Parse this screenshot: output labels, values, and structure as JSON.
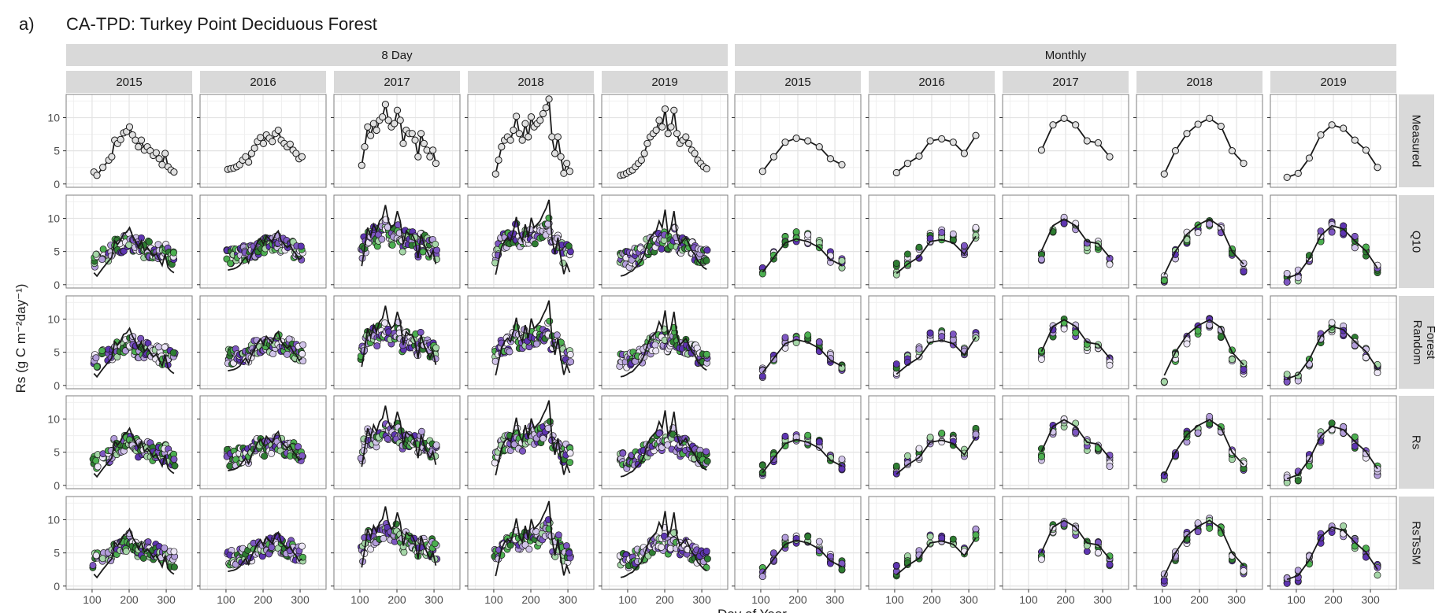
{
  "figure": {
    "panel_label": "a)",
    "title": "CA-TPD: Turkey Point Deciduous Forest"
  },
  "colors": {
    "strip": "#d9d9d9",
    "panel_border": "#7f7f7f",
    "grid": "#e3e3e3",
    "line": "#1a1a1a",
    "point_outline": "#1a1a1a",
    "palette": [
      "#7e57c2",
      "#5e35b1",
      "#b39ddb",
      "#d1c4e9",
      "#a5d6a7",
      "#4caf50",
      "#2e7d32",
      "#ede7f6",
      "#ffffff"
    ]
  },
  "chart_data": {
    "type": "scatter",
    "subtype": "faceted line + scatter (small multiples)",
    "title": "CA-TPD: Turkey Point Deciduous Forest",
    "xlabel": "Day of Year",
    "ylabel": "Rs (g C m⁻²day⁻¹)",
    "x_ticks": [
      100,
      200,
      300
    ],
    "y_ticks": [
      0,
      5,
      10
    ],
    "xlim": [
      30,
      370
    ],
    "ylim": [
      -0.5,
      13.5
    ],
    "grid": true,
    "legend": "none",
    "column_groups": [
      {
        "label": "8 Day",
        "years": [
          "2015",
          "2016",
          "2017",
          "2018",
          "2019"
        ]
      },
      {
        "label": "Monthly",
        "years": [
          "2015",
          "2016",
          "2017",
          "2018",
          "2019"
        ]
      }
    ],
    "rows": [
      "Measured",
      "Q10",
      "Random Forest",
      "Rs",
      "RsTsSM"
    ],
    "measured": {
      "8day": {
        "2015": {
          "x": [
            105,
            113,
            129,
            145,
            153,
            161,
            169,
            177,
            185,
            193,
            201,
            209,
            217,
            225,
            233,
            241,
            249,
            257,
            265,
            273,
            281,
            289,
            297,
            305,
            313,
            321
          ],
          "y": [
            1.8,
            1.3,
            2.5,
            3.6,
            4.1,
            6.6,
            6.1,
            6.7,
            7.7,
            7.9,
            8.6,
            7.4,
            6.6,
            5.6,
            6.6,
            5.1,
            5.6,
            5.0,
            4.3,
            4.7,
            3.8,
            2.9,
            4.6,
            2.6,
            2.1,
            1.8
          ]
        },
        "2016": {
          "x": [
            105,
            113,
            121,
            129,
            137,
            145,
            153,
            161,
            169,
            177,
            185,
            193,
            201,
            209,
            217,
            225,
            233,
            241,
            249,
            257,
            265,
            273,
            281,
            289,
            297,
            305
          ],
          "y": [
            2.2,
            2.3,
            2.4,
            2.6,
            2.9,
            3.6,
            4.1,
            3.3,
            4.6,
            5.4,
            6.4,
            7.0,
            6.1,
            7.4,
            6.9,
            6.4,
            7.6,
            8.1,
            6.6,
            6.1,
            5.6,
            6.0,
            5.1,
            4.6,
            3.8,
            4.1
          ]
        },
        "2017": {
          "x": [
            105,
            113,
            121,
            129,
            137,
            145,
            153,
            161,
            169,
            177,
            185,
            193,
            201,
            209,
            217,
            225,
            233,
            241,
            249,
            257,
            265,
            273,
            281,
            289,
            297,
            305
          ],
          "y": [
            2.8,
            5.6,
            8.6,
            7.3,
            9.1,
            8.1,
            9.6,
            10.1,
            12.0,
            9.6,
            8.6,
            9.1,
            11.1,
            9.6,
            6.1,
            8.1,
            7.6,
            7.6,
            6.6,
            4.1,
            7.6,
            6.1,
            5.1,
            4.1,
            5.1,
            3.1
          ]
        },
        "2018": {
          "x": [
            105,
            113,
            121,
            129,
            137,
            145,
            153,
            161,
            169,
            177,
            185,
            193,
            201,
            209,
            217,
            225,
            233,
            241,
            249,
            257,
            265,
            273,
            281,
            289,
            297,
            305
          ],
          "y": [
            1.5,
            3.6,
            5.6,
            6.6,
            7.1,
            6.6,
            8.1,
            10.2,
            7.6,
            6.6,
            9.1,
            7.1,
            10.1,
            8.6,
            9.1,
            9.6,
            10.6,
            11.5,
            12.8,
            7.1,
            4.6,
            7.1,
            4.1,
            1.6,
            3.1,
            1.9
          ]
        },
        "2019": {
          "x": [
            81,
            89,
            97,
            105,
            113,
            121,
            129,
            137,
            145,
            153,
            161,
            169,
            177,
            185,
            193,
            201,
            209,
            217,
            225,
            233,
            241,
            249,
            257,
            265,
            273,
            281,
            289,
            297,
            305,
            313
          ],
          "y": [
            1.3,
            1.4,
            1.6,
            1.9,
            2.1,
            2.6,
            3.1,
            3.6,
            4.6,
            6.1,
            7.1,
            7.6,
            8.1,
            9.6,
            8.6,
            11.3,
            7.6,
            8.6,
            11.1,
            7.6,
            6.1,
            6.6,
            7.1,
            6.1,
            5.1,
            4.6,
            3.6,
            3.1,
            2.6,
            2.3
          ]
        }
      },
      "monthly": {
        "2015": {
          "x": [
            105,
            135,
            166,
            196,
            227,
            258,
            288,
            319
          ],
          "y": [
            1.9,
            4.1,
            6.3,
            6.9,
            6.5,
            5.6,
            3.8,
            2.9
          ]
        },
        "2016": {
          "x": [
            105,
            135,
            166,
            196,
            227,
            258,
            288,
            319
          ],
          "y": [
            1.7,
            3.1,
            4.2,
            6.5,
            6.8,
            6.3,
            4.6,
            7.3
          ]
        },
        "2017": {
          "x": [
            135,
            166,
            196,
            227,
            258,
            288,
            319
          ],
          "y": [
            5.1,
            8.9,
            9.9,
            8.9,
            6.5,
            6.2,
            4.1
          ]
        },
        "2018": {
          "x": [
            105,
            135,
            166,
            196,
            227,
            258,
            288,
            319
          ],
          "y": [
            1.5,
            5.0,
            7.6,
            9.0,
            9.9,
            8.7,
            5.0,
            3.1
          ]
        },
        "2019": {
          "x": [
            75,
            105,
            135,
            166,
            196,
            227,
            258,
            288,
            319
          ],
          "y": [
            1.0,
            1.6,
            3.9,
            7.4,
            8.9,
            8.4,
            6.6,
            5.1,
            2.5
          ]
        }
      }
    },
    "model_points_note": "Rows Q10, Random Forest, Rs and RsTsSM overlay coloured scatter points (purple/green shades) of modelled values at the same days as the measured line; the measured line is repeated in each row."
  }
}
